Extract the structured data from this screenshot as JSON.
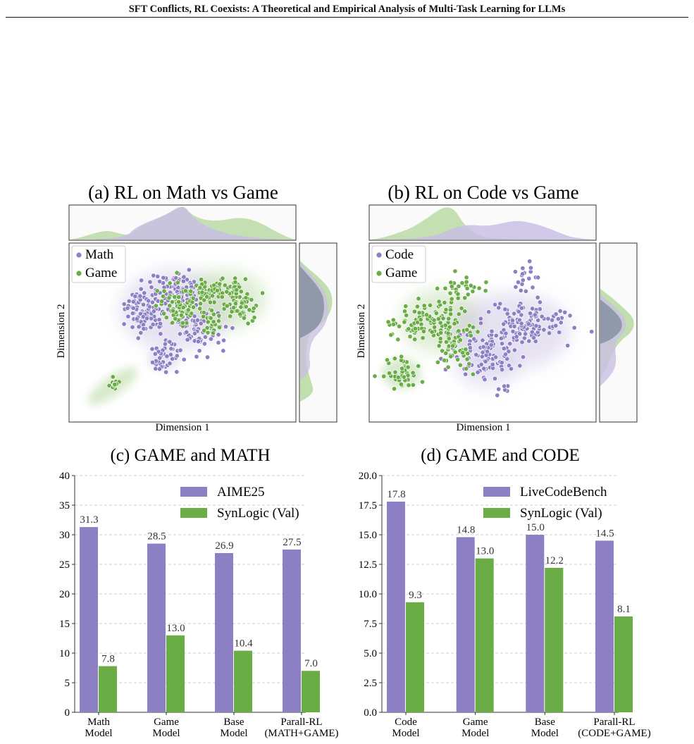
{
  "header": {
    "title": "SFT Conflicts, RL Coexists: A Theoretical and Empirical Analysis of Multi-Task Learning for LLMs"
  },
  "colors": {
    "purple": "#8c7fc4",
    "green": "#6aac45",
    "purple_light": "#c9bfe3",
    "green_light": "#b6d8a0",
    "overlap": "#7d8a99"
  },
  "panels": {
    "a": {
      "title": "(a) RL on Math vs Game",
      "xlabel": "Dimension 1",
      "ylabel": "Dimension 2",
      "legend": [
        "Math",
        "Game"
      ]
    },
    "b": {
      "title": "(b) RL on Code vs Game",
      "xlabel": "Dimension 1",
      "ylabel": "Dimension 2",
      "legend": [
        "Code",
        "Game"
      ]
    }
  },
  "chart_data": [
    {
      "type": "bar",
      "title": "(c) GAME and MATH",
      "categories": [
        "Math\nModel",
        "Game\nModel",
        "Base\nModel",
        "Parall-RL\n(MATH+GAME)"
      ],
      "series": [
        {
          "name": "AIME25",
          "values": [
            31.3,
            28.5,
            26.9,
            27.5
          ]
        },
        {
          "name": "SynLogic (Val)",
          "values": [
            7.8,
            13.0,
            10.4,
            7.0
          ]
        }
      ],
      "value_labels": [
        [
          "31.3",
          "28.5",
          "26.9",
          "27.5"
        ],
        [
          "7.8",
          "13.0",
          "10.4",
          "7.0"
        ]
      ],
      "ylim": [
        0,
        40
      ],
      "yticks": [
        "0",
        "5",
        "10",
        "15",
        "20",
        "25",
        "30",
        "35",
        "40"
      ],
      "grid": true,
      "legend": "top-right"
    },
    {
      "type": "bar",
      "title": "(d) GAME and CODE",
      "categories": [
        "Code\nModel",
        "Game\nModel",
        "Base\nModel",
        "Parall-RL\n(CODE+GAME)"
      ],
      "series": [
        {
          "name": "LiveCodeBench",
          "values": [
            17.8,
            14.8,
            15.0,
            14.5
          ]
        },
        {
          "name": "SynLogic (Val)",
          "values": [
            9.3,
            13.0,
            12.2,
            8.1
          ]
        }
      ],
      "value_labels": [
        [
          "17.8",
          "14.8",
          "15.0",
          "14.5"
        ],
        [
          "9.3",
          "13.0",
          "12.2",
          "8.1"
        ]
      ],
      "ylim": [
        0,
        20
      ],
      "yticks": [
        "0.0",
        "2.5",
        "5.0",
        "7.5",
        "10.0",
        "12.5",
        "15.0",
        "17.5",
        "20.0"
      ],
      "grid": true,
      "legend": "top-right"
    }
  ]
}
